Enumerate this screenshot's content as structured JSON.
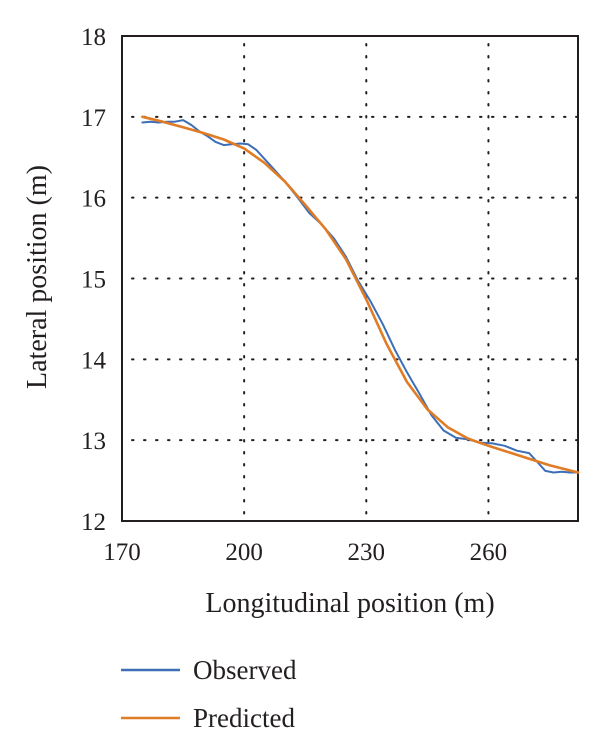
{
  "chart_data": {
    "type": "line",
    "xlabel": "Longitudinal position (m)",
    "ylabel": "Lateral position (m)",
    "xlim": [
      170,
      282
    ],
    "ylim": [
      12,
      18
    ],
    "x_ticks": [
      170,
      200,
      230,
      260
    ],
    "y_ticks": [
      12,
      13,
      14,
      15,
      16,
      17,
      18
    ],
    "x_tick_labels": [
      "170",
      "200",
      "230",
      "260"
    ],
    "y_tick_labels": [
      "12",
      "13",
      "14",
      "15",
      "16",
      "17",
      "18"
    ],
    "grid": true,
    "legend_position": "bottom",
    "series": [
      {
        "name": "Observed",
        "color": "#3d6fb6",
        "x": [
          175,
          177,
          179,
          181,
          183,
          185,
          187,
          189,
          191,
          193,
          195,
          197,
          199,
          201,
          203,
          205,
          207,
          210,
          213,
          216,
          219,
          222,
          225,
          228,
          231,
          234,
          237,
          240,
          243,
          246,
          249,
          252,
          255,
          258,
          261,
          264,
          267,
          270,
          272,
          274,
          276,
          278,
          280,
          282
        ],
        "y": [
          16.93,
          16.94,
          16.93,
          16.94,
          16.94,
          16.96,
          16.9,
          16.82,
          16.76,
          16.69,
          16.65,
          16.66,
          16.67,
          16.66,
          16.59,
          16.48,
          16.37,
          16.2,
          16.01,
          15.81,
          15.67,
          15.5,
          15.27,
          14.97,
          14.72,
          14.44,
          14.12,
          13.84,
          13.58,
          13.31,
          13.12,
          13.03,
          13.01,
          12.97,
          12.96,
          12.93,
          12.87,
          12.84,
          12.73,
          12.62,
          12.6,
          12.61,
          12.6,
          12.6
        ]
      },
      {
        "name": "Predicted",
        "color": "#e07b26",
        "x": [
          175,
          180,
          185,
          190,
          195,
          200,
          205,
          210,
          215,
          220,
          225,
          230,
          235,
          240,
          245,
          250,
          255,
          260,
          265,
          270,
          275,
          282
        ],
        "y": [
          17.0,
          16.94,
          16.87,
          16.8,
          16.72,
          16.61,
          16.43,
          16.2,
          15.91,
          15.61,
          15.24,
          14.74,
          14.19,
          13.72,
          13.38,
          13.16,
          13.02,
          12.93,
          12.85,
          12.77,
          12.69,
          12.6
        ]
      }
    ]
  }
}
